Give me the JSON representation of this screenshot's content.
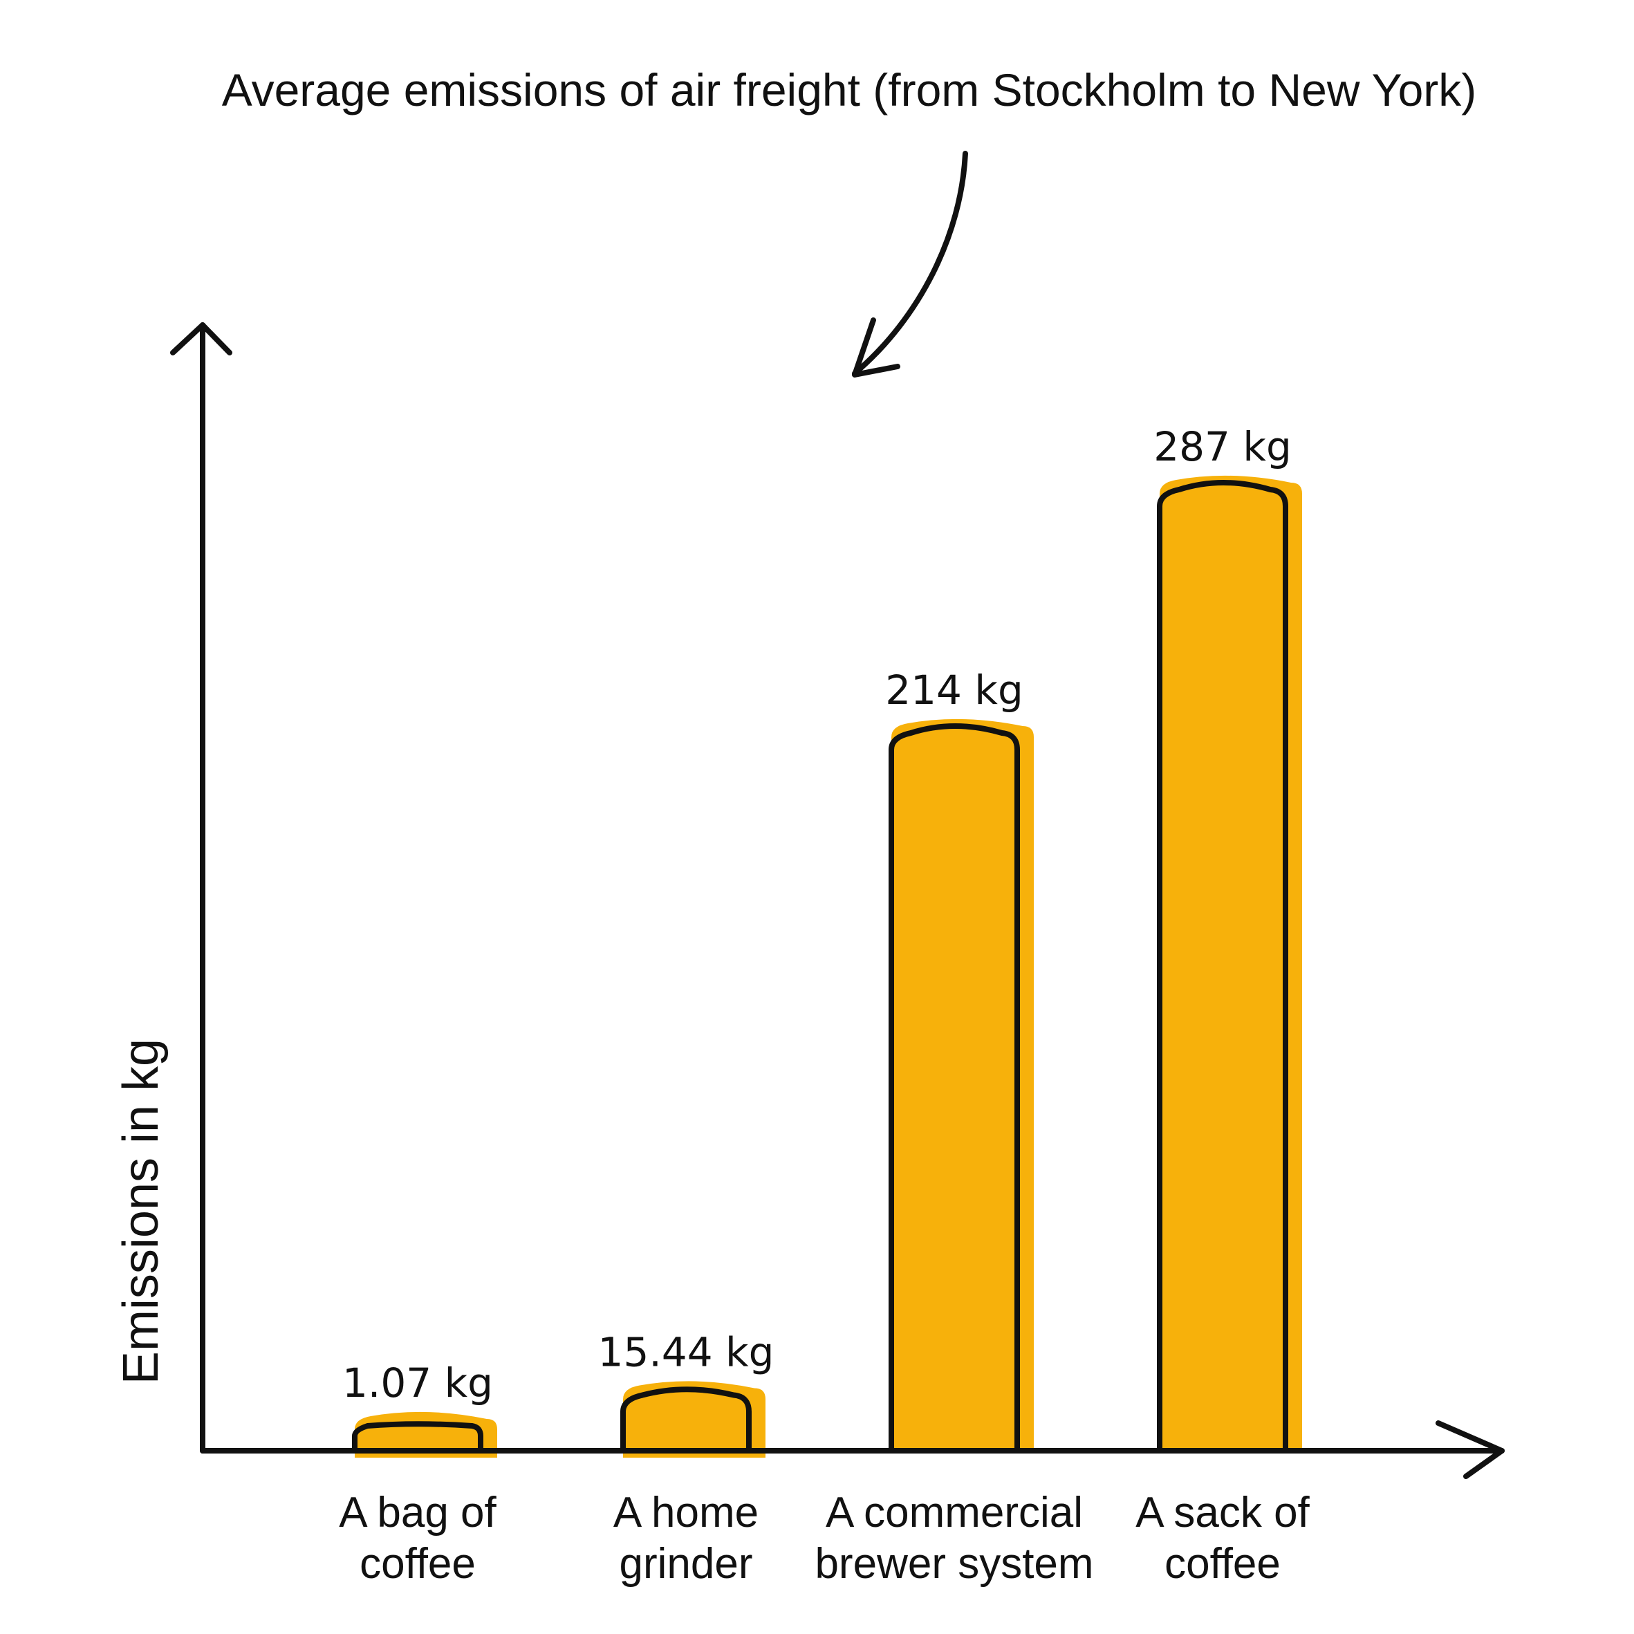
{
  "chart_data": {
    "type": "bar",
    "title": "Average emissions of air freight (from Stockholm to New York)",
    "ylabel": "Emissions in kg",
    "xlabel": "",
    "categories": [
      [
        "A bag of",
        "coffee"
      ],
      [
        "A home",
        "grinder"
      ],
      [
        "A commercial",
        "brewer system"
      ],
      [
        "A sack of",
        "coffee"
      ]
    ],
    "values": [
      1.07,
      15.44,
      214,
      287
    ],
    "value_labels": [
      "1.07 kg",
      "15.44 kg",
      "214 kg",
      "287 kg"
    ],
    "ylim": [
      0,
      340
    ],
    "grid": false,
    "colors": {
      "fill": "#F7B10B",
      "outline": "#111111"
    }
  }
}
